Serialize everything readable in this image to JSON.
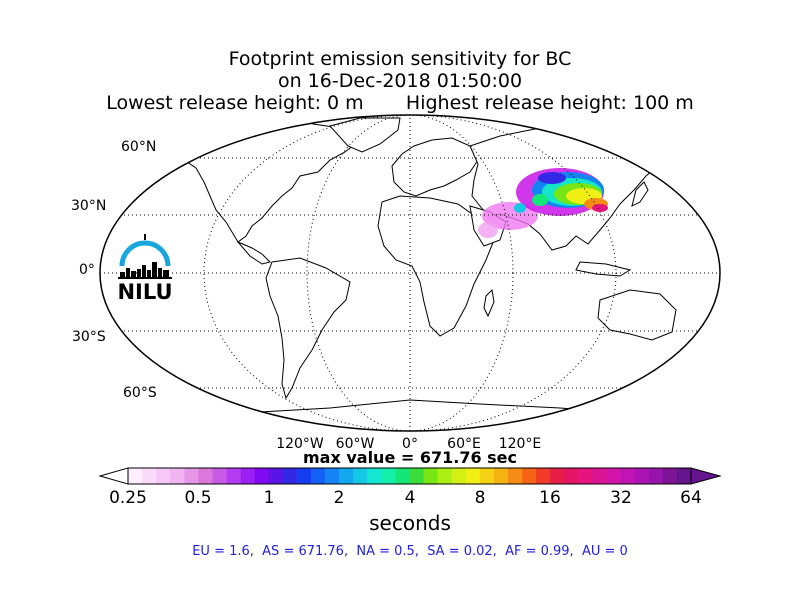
{
  "title": {
    "line1": "Footprint emission sensitivity for BC",
    "line2": "on 16-Dec-2018 01:50:00",
    "line3": "Lowest release height: 0 m       Highest release height: 100 m"
  },
  "map": {
    "projection": "robinson",
    "lat_labels": [
      "60°N",
      "30°N",
      "0°",
      "30°S",
      "60°S"
    ],
    "lon_labels": [
      "120°W",
      "60°W",
      "0°",
      "60°E",
      "120°E"
    ],
    "max_value_text": "max value = 671.76 sec",
    "sensitivity_region": "Central and East Asia"
  },
  "logo": {
    "text": "NILU",
    "color": "#18a6dc"
  },
  "colorbar": {
    "ticks": [
      "0.25",
      "0.5",
      "1",
      "2",
      "4",
      "8",
      "16",
      "32",
      "64"
    ],
    "label": "seconds",
    "colors": [
      "#ffeeff",
      "#fadcfa",
      "#f5c8f5",
      "#f0b4f0",
      "#e696e6",
      "#dc78dc",
      "#c85ae6",
      "#b43cf0",
      "#9b1ef5",
      "#7d0af0",
      "#5a14e6",
      "#3228e6",
      "#143cf0",
      "#1460f5",
      "#1484f5",
      "#14a8f0",
      "#14c8e6",
      "#14e6d2",
      "#14f0aa",
      "#14e678",
      "#3cdc3c",
      "#78e614",
      "#aaf014",
      "#d2f014",
      "#f0f014",
      "#f5d214",
      "#f5b414",
      "#f58c14",
      "#f56414",
      "#f03c28",
      "#e61e46",
      "#e61464",
      "#e6147d",
      "#dc1496",
      "#d214aa",
      "#c014b4",
      "#aa14b4",
      "#9614aa",
      "#7d1496",
      "#64148c"
    ]
  },
  "stats_text": "EU = 1.6,  AS = 671.76,  NA = 0.5,  SA = 0.02,  AF = 0.99,  AU = 0"
}
